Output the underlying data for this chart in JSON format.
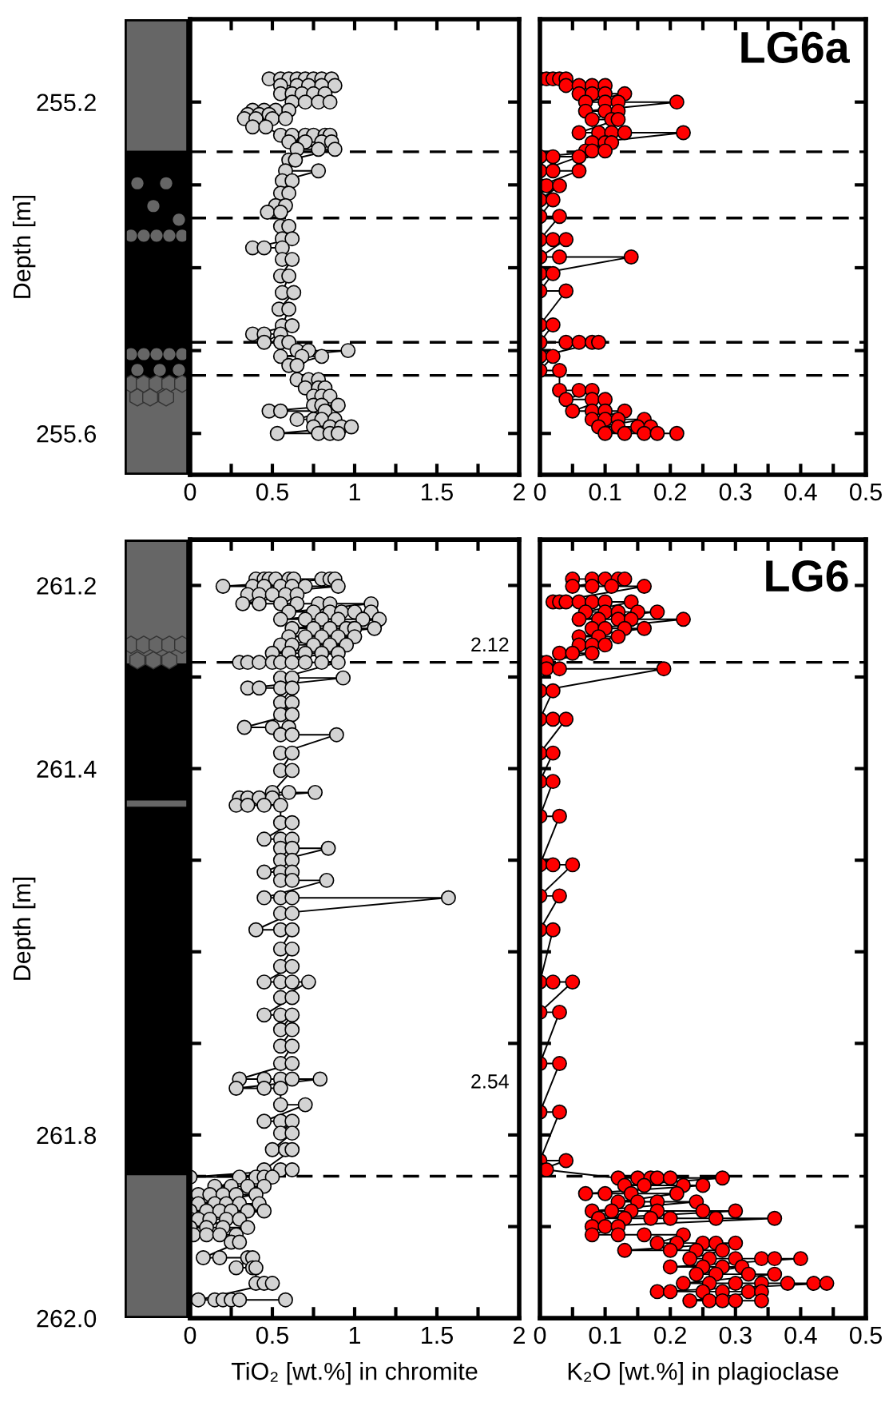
{
  "chart_data": [
    {
      "type": "line",
      "marker": "circle",
      "line_style": "solid",
      "grid": false,
      "ylabel": "Depth [m]",
      "xlim": [
        0,
        2
      ],
      "xticks": [
        0,
        {
          "value": 0.25,
          "label": null
        },
        0.5,
        {
          "value": 0.75,
          "label": null
        },
        1,
        {
          "value": 1.25,
          "label": null
        },
        1.5,
        {
          "value": 1.75,
          "label": null
        },
        2
      ],
      "ylim": [
        255.65,
        255.1
      ],
      "yticks": [
        255.2,
        {
          "value": 255.3,
          "label": null
        },
        {
          "value": 255.4,
          "label": null
        },
        {
          "value": 255.5,
          "label": null
        },
        255.6
      ],
      "ref_lines": [
        {
          "axis": "y",
          "value": 255.26,
          "line_style": "dashed",
          "color": "#000000"
        },
        {
          "axis": "y",
          "value": 255.34,
          "line_style": "dashed",
          "color": "#000000"
        },
        {
          "axis": "y",
          "value": 255.49,
          "line_style": "dashed",
          "color": "#000000"
        },
        {
          "axis": "y",
          "value": 255.53,
          "line_style": "dashed",
          "color": "#000000"
        }
      ],
      "series": [
        {
          "color": "#d3d3d3",
          "x": [
            0.48,
            0.55,
            0.6,
            0.65,
            0.7,
            0.75,
            0.8,
            0.86,
            0.55,
            0.65,
            0.72,
            0.8,
            0.88,
            0.55,
            0.62,
            0.68,
            0.75,
            0.82,
            0.62,
            0.7,
            0.78,
            0.85,
            0.38,
            0.45,
            0.52,
            0.6,
            0.35,
            0.42,
            0.48,
            0.33,
            0.4,
            0.5,
            0.58,
            0.38,
            0.46,
            0.55,
            0.62,
            0.7,
            0.75,
            0.82,
            0.85,
            0.6,
            0.7,
            0.8,
            0.86,
            0.65,
            0.78,
            0.88,
            0.6,
            0.64,
            0.58,
            0.78,
            0.56,
            0.62,
            0.55,
            0.6,
            0.52,
            0.58,
            0.47,
            0.55,
            0.55,
            0.6,
            0.56,
            0.62,
            0.38,
            0.45,
            0.56,
            0.56,
            0.62,
            0.55,
            0.6,
            0.56,
            0.63,
            0.54,
            0.6,
            0.56,
            0.62,
            0.38,
            0.45,
            0.55,
            0.45,
            0.55,
            0.6,
            0.65,
            0.72,
            0.96,
            0.55,
            0.68,
            0.8,
            0.6,
            0.65,
            0.65,
            0.72,
            0.78,
            0.7,
            0.78,
            0.82,
            0.75,
            0.8,
            0.85,
            0.75,
            0.8,
            0.9,
            0.48,
            0.55,
            0.82,
            0.65,
            0.75,
            0.8,
            0.88,
            0.75,
            0.85,
            0.92,
            0.98,
            0.53,
            0.78,
            0.85,
            0.9
          ],
          "values": [
            255.172,
            255.172,
            255.172,
            255.172,
            255.172,
            255.172,
            255.172,
            255.172,
            255.18,
            255.18,
            255.18,
            255.18,
            255.18,
            255.19,
            255.19,
            255.19,
            255.19,
            255.19,
            255.2,
            255.2,
            255.2,
            255.2,
            255.21,
            255.21,
            255.21,
            255.21,
            255.215,
            255.215,
            255.215,
            255.22,
            255.22,
            255.22,
            255.22,
            255.23,
            255.23,
            255.24,
            255.24,
            255.24,
            255.24,
            255.24,
            255.24,
            255.248,
            255.248,
            255.248,
            255.248,
            255.257,
            255.257,
            255.257,
            255.27,
            255.27,
            255.283,
            255.283,
            255.295,
            255.295,
            255.31,
            255.31,
            255.325,
            255.325,
            255.333,
            255.333,
            255.35,
            255.35,
            255.365,
            255.365,
            255.376,
            255.376,
            255.376,
            255.39,
            255.39,
            255.41,
            255.41,
            255.43,
            255.43,
            255.45,
            255.45,
            255.47,
            255.47,
            255.48,
            255.48,
            255.48,
            255.49,
            255.49,
            255.49,
            255.5,
            255.5,
            255.5,
            255.507,
            255.507,
            255.507,
            255.518,
            255.518,
            255.535,
            255.535,
            255.535,
            255.545,
            255.545,
            255.545,
            255.555,
            255.555,
            255.555,
            255.566,
            255.566,
            255.566,
            255.573,
            255.573,
            255.573,
            255.583,
            255.583,
            255.583,
            255.583,
            255.592,
            255.592,
            255.592,
            255.592,
            255.6,
            255.6,
            255.6,
            255.6
          ]
        }
      ]
    },
    {
      "type": "line",
      "marker": "circle",
      "line_style": "solid",
      "grid": false,
      "title": "LG6a",
      "tick_labels": "x",
      "xlim": [
        0,
        0.5
      ],
      "xticks": [
        0,
        {
          "value": 0.05,
          "label": null
        },
        0.1,
        {
          "value": 0.15,
          "label": null
        },
        0.2,
        {
          "value": 0.25,
          "label": null
        },
        0.3,
        {
          "value": 0.35,
          "label": null
        },
        0.4,
        {
          "value": 0.45,
          "label": null
        },
        0.5
      ],
      "ylim": [
        255.65,
        255.1
      ],
      "yticks": [
        255.2,
        255.3,
        255.4,
        255.5,
        255.6
      ],
      "ref_lines": [
        {
          "axis": "y",
          "value": 255.26,
          "line_style": "dashed",
          "color": "#000000"
        },
        {
          "axis": "y",
          "value": 255.34,
          "line_style": "dashed",
          "color": "#000000"
        },
        {
          "axis": "y",
          "value": 255.49,
          "line_style": "dashed",
          "color": "#000000"
        },
        {
          "axis": "y",
          "value": 255.53,
          "line_style": "dashed",
          "color": "#000000"
        }
      ],
      "series": [
        {
          "color": "#ff0000",
          "x": [
            0.0,
            0.01,
            0.02,
            0.03,
            0.04,
            0.04,
            0.06,
            0.08,
            0.1,
            0.06,
            0.08,
            0.1,
            0.13,
            0.07,
            0.1,
            0.12,
            0.21,
            0.07,
            0.1,
            0.12,
            0.08,
            0.11,
            0.12,
            0.06,
            0.09,
            0.11,
            0.13,
            0.22,
            0.08,
            0.1,
            0.11,
            0.07,
            0.08,
            0.1,
            0.0,
            0.02,
            0.06,
            0.0,
            0.02,
            0.06,
            0.0,
            0.01,
            0.03,
            0.0,
            0.02,
            0.0,
            0.03,
            0.0,
            0.02,
            0.04,
            0.0,
            0.03,
            0.14,
            0.0,
            0.02,
            0.0,
            0.04,
            0.0,
            0.02,
            0.0,
            0.04,
            0.06,
            0.08,
            0.09,
            0.0,
            0.02,
            0.0,
            0.03,
            0.03,
            0.06,
            0.08,
            0.04,
            0.08,
            0.1,
            0.05,
            0.08,
            0.1,
            0.13,
            0.08,
            0.1,
            0.12,
            0.16,
            0.09,
            0.12,
            0.15,
            0.17,
            0.1,
            0.13,
            0.16,
            0.18,
            0.21
          ],
          "values": [
            255.172,
            255.172,
            255.172,
            255.172,
            255.172,
            255.18,
            255.18,
            255.18,
            255.18,
            255.19,
            255.19,
            255.19,
            255.19,
            255.2,
            255.2,
            255.2,
            255.2,
            255.211,
            255.211,
            255.211,
            255.221,
            255.221,
            255.221,
            255.237,
            255.237,
            255.237,
            255.237,
            255.237,
            255.249,
            255.249,
            255.249,
            255.259,
            255.259,
            255.259,
            255.266,
            255.266,
            255.266,
            255.283,
            255.283,
            255.283,
            255.301,
            255.301,
            255.301,
            255.318,
            255.318,
            255.338,
            255.338,
            255.366,
            255.366,
            255.366,
            255.387,
            255.387,
            255.387,
            255.407,
            255.407,
            255.428,
            255.428,
            255.469,
            255.469,
            255.49,
            255.49,
            255.49,
            255.49,
            255.49,
            255.507,
            255.507,
            255.524,
            255.524,
            255.548,
            255.548,
            255.548,
            255.559,
            255.559,
            255.559,
            255.573,
            255.573,
            255.573,
            255.573,
            255.583,
            255.583,
            255.583,
            255.583,
            255.592,
            255.592,
            255.592,
            255.592,
            255.6,
            255.6,
            255.6,
            255.6,
            255.6
          ]
        }
      ]
    },
    {
      "type": "line",
      "marker": "circle",
      "line_style": "solid",
      "grid": false,
      "ylabel": "Depth [m]",
      "xlabel": "TiO₂ [wt.%] in chromite",
      "xlim": [
        0,
        2
      ],
      "xticks": [
        0,
        {
          "value": 0.25,
          "label": null
        },
        0.5,
        {
          "value": 0.75,
          "label": null
        },
        1,
        {
          "value": 1.25,
          "label": null
        },
        1.5,
        {
          "value": 1.75,
          "label": null
        },
        2
      ],
      "ylim": [
        262.0,
        261.15
      ],
      "yticks": [
        261.2,
        {
          "value": 261.3,
          "label": null
        },
        261.4,
        {
          "value": 261.5,
          "label": null
        },
        {
          "value": 261.6,
          "label": null
        },
        {
          "value": 261.7,
          "label": null
        },
        261.8,
        {
          "value": 261.9,
          "label": null
        },
        {
          "value": 262.0,
          "label": "262.0"
        }
      ],
      "ref_lines": [
        {
          "axis": "y",
          "value": 261.284,
          "line_style": "dashed",
          "color": "#000000"
        },
        {
          "axis": "y",
          "value": 261.845,
          "line_style": "dashed",
          "color": "#000000"
        }
      ],
      "annotations": [
        "2.12",
        "2.54"
      ],
      "series": [
        {
          "color": "#d3d3d3",
          "x": [
            0.4,
            0.45,
            0.48,
            0.52,
            0.6,
            0.63,
            0.8,
            0.85,
            0.88,
            0.2,
            0.38,
            0.45,
            0.55,
            0.62,
            0.7,
            0.9,
            0.35,
            0.42,
            0.5,
            0.58,
            0.65,
            0.32,
            0.42,
            0.55,
            0.65,
            0.78,
            0.85,
            1.1,
            0.6,
            0.75,
            0.85,
            0.92,
            1.0,
            1.1,
            0.55,
            0.7,
            0.8,
            0.9,
            1.05,
            1.15,
            0.62,
            0.75,
            0.85,
            0.95,
            1.0,
            1.12,
            0.6,
            0.7,
            0.8,
            0.9,
            1.0,
            0.55,
            0.62,
            0.75,
            0.85,
            0.95,
            0.5,
            0.6,
            0.7,
            0.8,
            0.9,
            0.3,
            0.35,
            0.42,
            0.5,
            0.55,
            0.62,
            0.7,
            0.8,
            0.9,
            0.55,
            0.62,
            0.93,
            0.35,
            0.42,
            0.55,
            0.62,
            0.55,
            0.62,
            0.55,
            0.62,
            0.33,
            0.5,
            0.6,
            0.55,
            0.62,
            0.89,
            0.55,
            0.62,
            0.55,
            0.62,
            0.5,
            0.6,
            0.76,
            0.3,
            0.35,
            0.42,
            0.5,
            0.28,
            0.35,
            0.45,
            0.55,
            0.55,
            0.62,
            0.45,
            0.55,
            0.62,
            0.55,
            0.62,
            0.84,
            0.55,
            0.62,
            0.45,
            0.55,
            0.62,
            0.55,
            0.62,
            0.83,
            0.45,
            0.55,
            0.62,
            1.57,
            0.55,
            0.62,
            0.4,
            0.55,
            0.62,
            0.55,
            0.62,
            0.55,
            0.62,
            0.45,
            0.55,
            0.62,
            0.72,
            0.55,
            0.62,
            0.45,
            0.55,
            0.62,
            0.55,
            0.62,
            0.55,
            0.62,
            0.55,
            0.62,
            0.3,
            0.45,
            0.55,
            0.62,
            0.79,
            0.28,
            0.45,
            0.55,
            0.55,
            0.7,
            0.45,
            0.55,
            0.62,
            0.55,
            0.62,
            0.5,
            0.58,
            0.62,
            0.45,
            0.55,
            0.62,
            0.0,
            0.3,
            0.4,
            0.45,
            0.5,
            0.15,
            0.25,
            0.35,
            0.45,
            0.05,
            0.12,
            0.2,
            0.28,
            0.4,
            0.05,
            0.15,
            0.22,
            0.3,
            0.42,
            0.0,
            0.1,
            0.18,
            0.25,
            0.35,
            0.45,
            0.0,
            0.05,
            0.12,
            0.22,
            0.3,
            0.0,
            0.1,
            0.2,
            0.35,
            0.02,
            0.1,
            0.18,
            0.28,
            0.25,
            0.3,
            0.08,
            0.18,
            0.35,
            0.38,
            0.28,
            0.38,
            0.4,
            0.4,
            0.45,
            0.5,
            0.05,
            0.15,
            0.2,
            0.25,
            0.3,
            0.58
          ],
          "values": [
            261.193,
            261.193,
            261.193,
            261.193,
            261.193,
            261.193,
            261.193,
            261.193,
            261.193,
            261.201,
            261.201,
            261.201,
            261.201,
            261.201,
            261.201,
            261.201,
            261.21,
            261.21,
            261.21,
            261.21,
            261.21,
            261.22,
            261.22,
            261.22,
            261.22,
            261.22,
            261.22,
            261.22,
            261.229,
            261.229,
            261.229,
            261.229,
            261.229,
            261.229,
            261.237,
            261.237,
            261.237,
            261.237,
            261.237,
            261.237,
            261.247,
            261.247,
            261.247,
            261.247,
            261.247,
            261.247,
            261.256,
            261.256,
            261.256,
            261.256,
            261.256,
            261.265,
            261.265,
            261.265,
            261.265,
            261.265,
            261.274,
            261.274,
            261.274,
            261.274,
            261.274,
            261.284,
            261.284,
            261.284,
            261.284,
            261.284,
            261.284,
            261.284,
            261.284,
            261.284,
            261.301,
            261.301,
            261.301,
            261.312,
            261.312,
            261.312,
            261.312,
            261.328,
            261.328,
            261.341,
            261.341,
            261.355,
            261.355,
            261.355,
            261.363,
            261.363,
            261.363,
            261.383,
            261.383,
            261.402,
            261.402,
            261.426,
            261.426,
            261.426,
            261.432,
            261.432,
            261.432,
            261.432,
            261.44,
            261.44,
            261.44,
            261.44,
            261.459,
            261.459,
            261.477,
            261.477,
            261.477,
            261.487,
            261.487,
            261.487,
            261.5,
            261.5,
            261.513,
            261.513,
            261.513,
            261.522,
            261.522,
            261.522,
            261.541,
            261.541,
            261.541,
            261.541,
            261.558,
            261.558,
            261.576,
            261.576,
            261.576,
            261.597,
            261.597,
            261.616,
            261.616,
            261.633,
            261.633,
            261.633,
            261.633,
            261.65,
            261.65,
            261.669,
            261.669,
            261.669,
            261.685,
            261.685,
            261.703,
            261.703,
            261.722,
            261.722,
            261.739,
            261.739,
            261.739,
            261.739,
            261.739,
            261.749,
            261.749,
            261.749,
            261.767,
            261.767,
            261.785,
            261.785,
            261.785,
            261.798,
            261.798,
            261.816,
            261.816,
            261.816,
            261.838,
            261.838,
            261.838,
            261.846,
            261.846,
            261.846,
            261.846,
            261.846,
            261.856,
            261.856,
            261.856,
            261.856,
            261.865,
            261.865,
            261.865,
            261.865,
            261.865,
            261.875,
            261.875,
            261.875,
            261.875,
            261.875,
            261.883,
            261.883,
            261.883,
            261.883,
            261.883,
            261.883,
            261.892,
            261.892,
            261.892,
            261.892,
            261.892,
            261.901,
            261.901,
            261.901,
            261.901,
            261.909,
            261.909,
            261.909,
            261.909,
            261.917,
            261.917,
            261.934,
            261.934,
            261.934,
            261.934,
            261.945,
            261.945,
            261.945,
            261.962,
            261.962,
            261.962,
            261.98,
            261.98,
            261.98,
            261.98,
            261.98,
            261.98
          ]
        }
      ]
    },
    {
      "type": "line",
      "marker": "circle",
      "line_style": "solid",
      "grid": false,
      "title": "LG6",
      "tick_labels": "x",
      "xlabel": "K₂O [wt.%] in plagioclase",
      "xlim": [
        0,
        0.5
      ],
      "xticks": [
        0,
        {
          "value": 0.05,
          "label": null
        },
        0.1,
        {
          "value": 0.15,
          "label": null
        },
        0.2,
        {
          "value": 0.25,
          "label": null
        },
        0.3,
        {
          "value": 0.35,
          "label": null
        },
        0.4,
        {
          "value": 0.45,
          "label": null
        },
        0.5
      ],
      "ylim": [
        262.0,
        261.15
      ],
      "yticks": [
        261.2,
        261.3,
        261.4,
        261.5,
        261.6,
        261.7,
        261.8,
        261.9,
        262.0
      ],
      "ref_lines": [
        {
          "axis": "y",
          "value": 261.284,
          "line_style": "dashed",
          "color": "#000000"
        },
        {
          "axis": "y",
          "value": 261.845,
          "line_style": "dashed",
          "color": "#000000"
        }
      ],
      "series": [
        {
          "color": "#ff0000",
          "x": [
            0.05,
            0.08,
            0.1,
            0.12,
            0.13,
            0.05,
            0.08,
            0.11,
            0.16,
            0.02,
            0.03,
            0.04,
            0.06,
            0.08,
            0.1,
            0.14,
            0.07,
            0.1,
            0.12,
            0.15,
            0.18,
            0.06,
            0.09,
            0.12,
            0.14,
            0.22,
            0.08,
            0.1,
            0.13,
            0.16,
            0.06,
            0.09,
            0.12,
            0.06,
            0.08,
            0.1,
            0.03,
            0.05,
            0.08,
            0.0,
            0.01,
            0.01,
            0.03,
            0.19,
            0.0,
            0.02,
            0.0,
            0.02,
            0.04,
            0.0,
            0.02,
            0.0,
            0.02,
            0.0,
            0.03,
            0.0,
            0.02,
            0.05,
            0.0,
            0.03,
            0.0,
            0.02,
            0.0,
            0.02,
            0.05,
            0.0,
            0.03,
            0.0,
            0.03,
            0.0,
            0.03,
            0.0,
            0.04,
            0.0,
            0.01,
            0.12,
            0.15,
            0.17,
            0.18,
            0.2,
            0.28,
            0.13,
            0.16,
            0.22,
            0.25,
            0.07,
            0.1,
            0.14,
            0.21,
            0.12,
            0.15,
            0.18,
            0.24,
            0.08,
            0.11,
            0.14,
            0.18,
            0.25,
            0.3,
            0.09,
            0.13,
            0.17,
            0.2,
            0.27,
            0.36,
            0.08,
            0.1,
            0.12,
            0.08,
            0.12,
            0.16,
            0.22,
            0.18,
            0.21,
            0.25,
            0.27,
            0.3,
            0.13,
            0.2,
            0.24,
            0.28,
            0.23,
            0.26,
            0.3,
            0.34,
            0.36,
            0.4,
            0.2,
            0.25,
            0.28,
            0.31,
            0.24,
            0.27,
            0.32,
            0.36,
            0.22,
            0.26,
            0.3,
            0.34,
            0.38,
            0.42,
            0.44,
            0.18,
            0.2,
            0.25,
            0.28,
            0.32,
            0.34,
            0.23,
            0.26,
            0.28,
            0.3,
            0.34
          ],
          "values": [
            261.193,
            261.193,
            261.193,
            261.193,
            261.193,
            261.201,
            261.201,
            261.201,
            261.201,
            261.218,
            261.218,
            261.218,
            261.218,
            261.218,
            261.218,
            261.218,
            261.229,
            261.229,
            261.229,
            261.229,
            261.229,
            261.237,
            261.237,
            261.237,
            261.237,
            261.237,
            261.247,
            261.247,
            261.247,
            261.247,
            261.256,
            261.256,
            261.256,
            261.265,
            261.265,
            261.265,
            261.274,
            261.274,
            261.274,
            261.284,
            261.284,
            261.291,
            261.291,
            261.291,
            261.315,
            261.315,
            261.346,
            261.346,
            261.346,
            261.383,
            261.383,
            261.414,
            261.414,
            261.452,
            261.452,
            261.505,
            261.505,
            261.505,
            261.539,
            261.539,
            261.576,
            261.576,
            261.633,
            261.633,
            261.633,
            261.666,
            261.666,
            261.722,
            261.722,
            261.775,
            261.775,
            261.828,
            261.828,
            261.838,
            261.838,
            261.847,
            261.847,
            261.847,
            261.847,
            261.847,
            261.847,
            261.855,
            261.855,
            261.855,
            261.855,
            261.864,
            261.864,
            261.864,
            261.864,
            261.873,
            261.873,
            261.873,
            261.873,
            261.883,
            261.883,
            261.883,
            261.883,
            261.883,
            261.883,
            261.891,
            261.891,
            261.891,
            261.891,
            261.891,
            261.891,
            261.9,
            261.9,
            261.9,
            261.909,
            261.909,
            261.909,
            261.909,
            261.918,
            261.918,
            261.918,
            261.918,
            261.918,
            261.926,
            261.926,
            261.926,
            261.926,
            261.935,
            261.935,
            261.935,
            261.935,
            261.935,
            261.935,
            261.944,
            261.944,
            261.944,
            261.944,
            261.952,
            261.952,
            261.952,
            261.952,
            261.962,
            261.962,
            261.962,
            261.962,
            261.962,
            261.962,
            261.962,
            261.971,
            261.971,
            261.971,
            261.971,
            261.971,
            261.971,
            261.981,
            261.981,
            261.981,
            261.981,
            261.981
          ]
        }
      ]
    }
  ]
}
